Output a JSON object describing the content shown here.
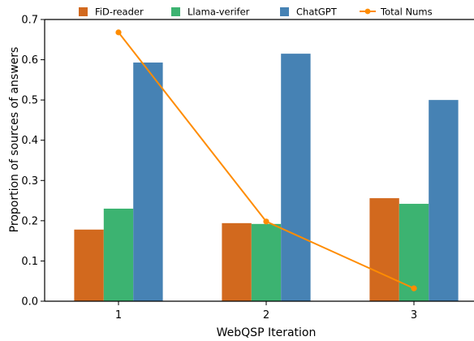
{
  "chart_data": {
    "type": "bar",
    "xlabel": "WebQSP Iteration",
    "ylabel": "Proportion of sources of answers",
    "categories": [
      "1",
      "2",
      "3"
    ],
    "ylim": [
      0,
      0.7
    ],
    "yticks": [
      "0.0",
      "0.1",
      "0.2",
      "0.3",
      "0.4",
      "0.5",
      "0.6",
      "0.7"
    ],
    "grid": false,
    "legend_position": "top",
    "series": [
      {
        "name": "FiD-reader",
        "kind": "bar",
        "color": "#d2691e",
        "values": [
          0.178,
          0.194,
          0.256
        ]
      },
      {
        "name": "Llama-verifer",
        "kind": "bar",
        "color": "#3cb371",
        "values": [
          0.23,
          0.192,
          0.242
        ]
      },
      {
        "name": "ChatGPT",
        "kind": "bar",
        "color": "#4682b4",
        "values": [
          0.593,
          0.615,
          0.5
        ]
      },
      {
        "name": "Total Nums",
        "kind": "line",
        "color": "#ff8c00",
        "values": [
          0.668,
          0.198,
          0.032
        ]
      }
    ]
  }
}
